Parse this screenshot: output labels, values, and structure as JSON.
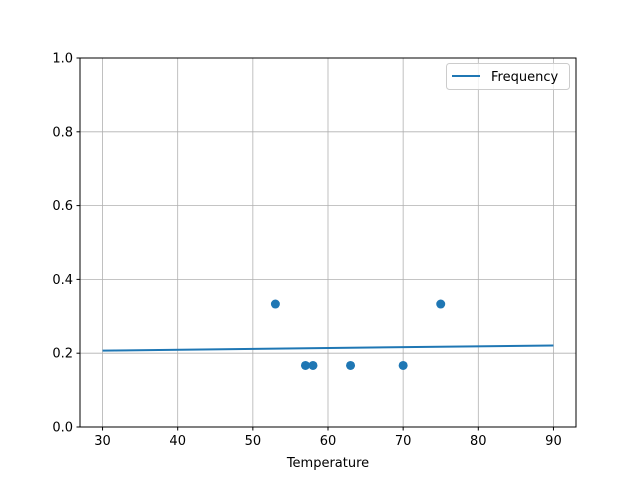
{
  "chart_data": {
    "type": "scatter",
    "title": "",
    "xlabel": "Temperature",
    "ylabel": "",
    "xlim": [
      27,
      93
    ],
    "ylim": [
      0,
      1
    ],
    "xticks": [
      30,
      40,
      50,
      60,
      70,
      80,
      90
    ],
    "yticks": [
      0.0,
      0.2,
      0.4,
      0.6,
      0.8,
      1.0
    ],
    "grid": true,
    "legend_position": "top-right",
    "color": "#1f77b4",
    "scatter_points": [
      {
        "x": 53,
        "y": 0.3333
      },
      {
        "x": 57,
        "y": 0.1667
      },
      {
        "x": 58,
        "y": 0.1667
      },
      {
        "x": 63,
        "y": 0.1667
      },
      {
        "x": 70,
        "y": 0.1667
      },
      {
        "x": 75,
        "y": 0.3333
      }
    ],
    "series": [
      {
        "name": "Frequency",
        "type": "line",
        "x": [
          30,
          90
        ],
        "y": [
          0.207,
          0.221
        ]
      }
    ]
  }
}
